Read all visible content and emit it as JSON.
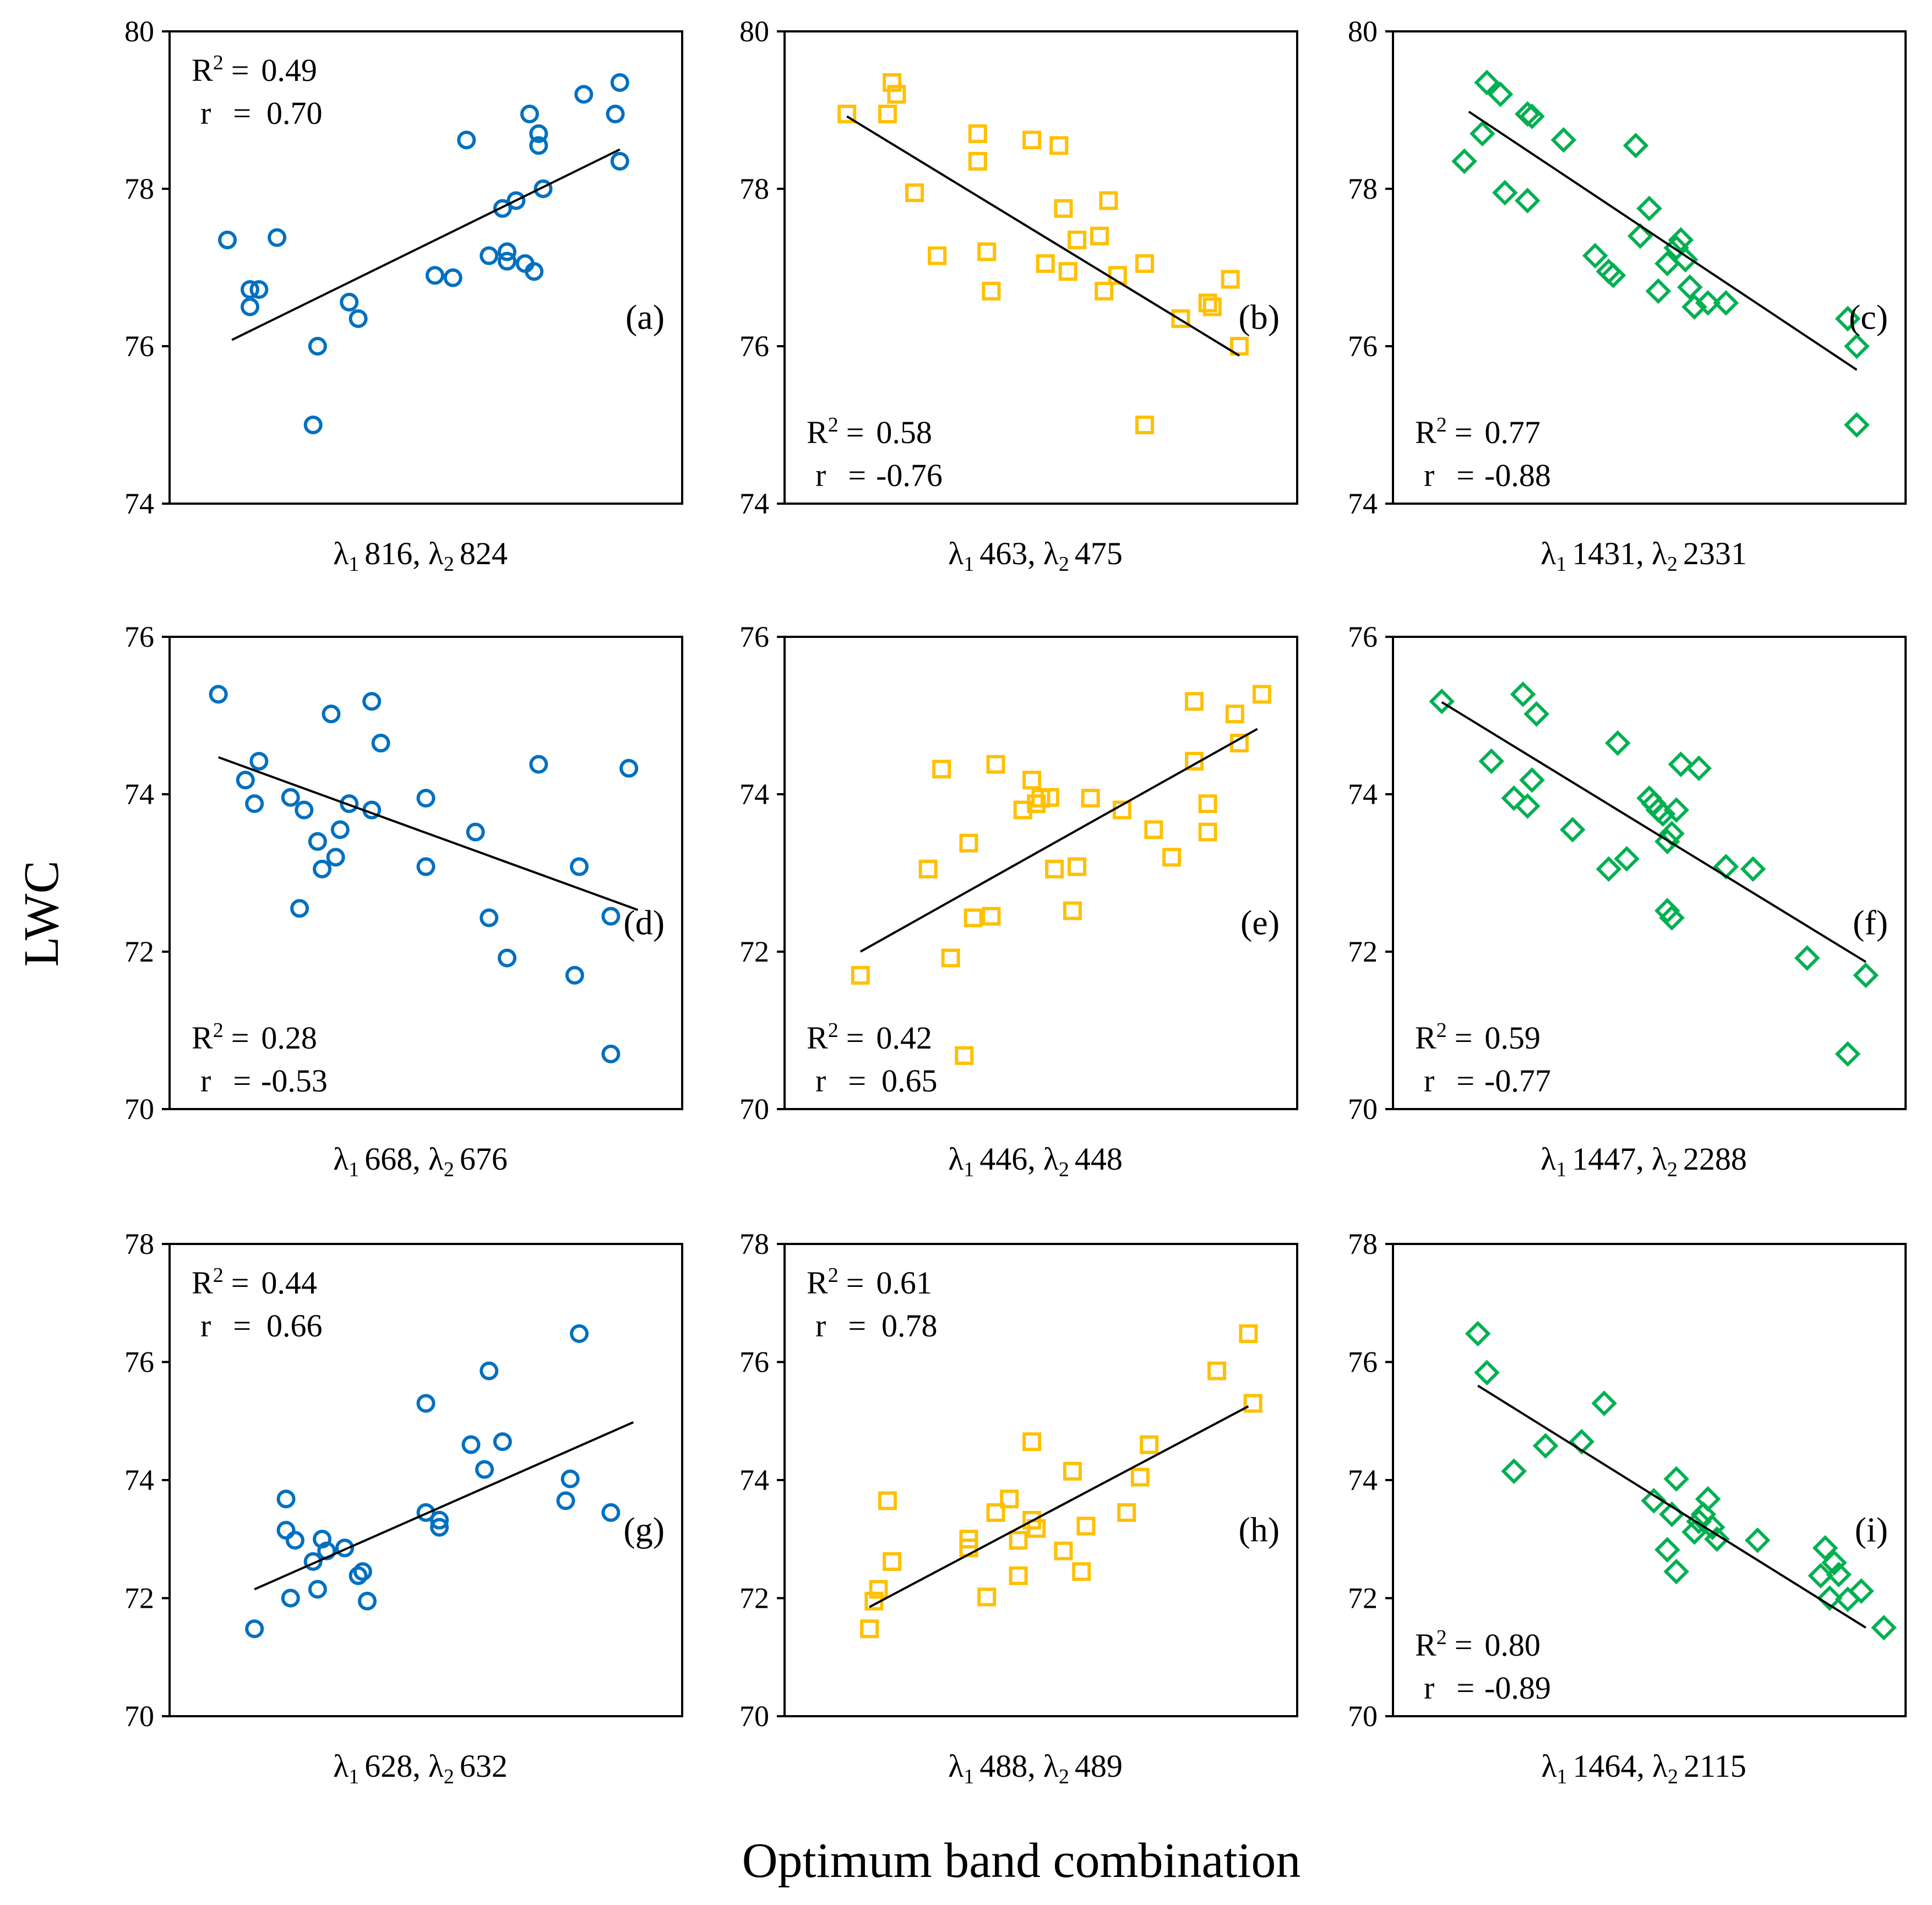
{
  "figure": {
    "ylabel": "LWC",
    "xlabel": "Optimum band combination",
    "colors": {
      "blue": "#0070c0",
      "orange": "#ffc000",
      "green": "#00b050",
      "axis": "#000000"
    }
  },
  "chart_data": [
    {
      "type": "scatter",
      "panel": "(a)",
      "marker": "circle",
      "color": "#0070c0",
      "band": {
        "l1": "816",
        "l2": "824"
      },
      "stats": {
        "r2_label": "R",
        "r2_value": "0.49",
        "r_label": "r",
        "r_value": "0.70",
        "eq": "="
      },
      "stats_position": "top-left",
      "ylim": [
        74,
        80
      ],
      "yticks": [
        "74",
        "76",
        "78",
        "80"
      ],
      "xlim": [
        0,
        1
      ],
      "trend": {
        "x": [
          0.07,
          0.93
        ],
        "y": [
          76.08,
          78.5
        ]
      },
      "points": [
        [
          0.06,
          77.35
        ],
        [
          0.11,
          76.72
        ],
        [
          0.11,
          76.5
        ],
        [
          0.13,
          76.72
        ],
        [
          0.17,
          77.38
        ],
        [
          0.26,
          76.0
        ],
        [
          0.25,
          75.0
        ],
        [
          0.33,
          76.56
        ],
        [
          0.35,
          76.35
        ],
        [
          0.52,
          76.9
        ],
        [
          0.56,
          76.87
        ],
        [
          0.59,
          78.62
        ],
        [
          0.64,
          77.15
        ],
        [
          0.67,
          77.75
        ],
        [
          0.68,
          77.2
        ],
        [
          0.68,
          77.08
        ],
        [
          0.7,
          77.85
        ],
        [
          0.72,
          77.05
        ],
        [
          0.73,
          78.95
        ],
        [
          0.74,
          76.95
        ],
        [
          0.75,
          78.55
        ],
        [
          0.75,
          78.7
        ],
        [
          0.76,
          78.0
        ],
        [
          0.85,
          79.2
        ],
        [
          0.92,
          78.95
        ],
        [
          0.93,
          79.35
        ],
        [
          0.93,
          78.35
        ]
      ]
    },
    {
      "type": "scatter",
      "panel": "(b)",
      "marker": "square",
      "color": "#ffc000",
      "band": {
        "l1": "463",
        "l2": "475"
      },
      "stats": {
        "r2_label": "R",
        "r2_value": "0.58",
        "r_label": "r",
        "r_value": "-0.76",
        "eq": "="
      },
      "stats_position": "bottom-left",
      "ylim": [
        74,
        80
      ],
      "yticks": [
        "74",
        "76",
        "78",
        "80"
      ],
      "xlim": [
        0,
        1
      ],
      "trend": {
        "x": [
          0.07,
          0.94
        ],
        "y": [
          78.92,
          75.88
        ]
      },
      "points": [
        [
          0.07,
          78.95
        ],
        [
          0.16,
          78.95
        ],
        [
          0.17,
          79.35
        ],
        [
          0.18,
          79.2
        ],
        [
          0.22,
          77.95
        ],
        [
          0.27,
          77.15
        ],
        [
          0.36,
          78.7
        ],
        [
          0.36,
          78.35
        ],
        [
          0.38,
          77.2
        ],
        [
          0.39,
          76.7
        ],
        [
          0.48,
          78.62
        ],
        [
          0.51,
          77.05
        ],
        [
          0.54,
          78.55
        ],
        [
          0.55,
          77.75
        ],
        [
          0.56,
          76.95
        ],
        [
          0.58,
          77.35
        ],
        [
          0.63,
          77.4
        ],
        [
          0.64,
          76.7
        ],
        [
          0.65,
          77.85
        ],
        [
          0.67,
          76.9
        ],
        [
          0.73,
          77.05
        ],
        [
          0.73,
          75.0
        ],
        [
          0.81,
          76.35
        ],
        [
          0.87,
          76.55
        ],
        [
          0.88,
          76.5
        ],
        [
          0.92,
          76.85
        ],
        [
          0.94,
          76.0
        ]
      ]
    },
    {
      "type": "scatter",
      "panel": "(c)",
      "marker": "diamond",
      "color": "#00b050",
      "band": {
        "l1": "1431",
        "l2": "2331"
      },
      "stats": {
        "r2_label": "R",
        "r2_value": "0.77",
        "r_label": "r",
        "r_value": "-0.88",
        "eq": "="
      },
      "stats_position": "bottom-left",
      "ylim": [
        74,
        80
      ],
      "yticks": [
        "74",
        "76",
        "78",
        "80"
      ],
      "xlim": [
        0,
        1
      ],
      "trend": {
        "x": [
          0.1,
          0.96
        ],
        "y": [
          78.98,
          75.7
        ]
      },
      "points": [
        [
          0.09,
          78.35
        ],
        [
          0.13,
          78.7
        ],
        [
          0.14,
          79.35
        ],
        [
          0.17,
          79.2
        ],
        [
          0.18,
          77.95
        ],
        [
          0.23,
          78.95
        ],
        [
          0.24,
          78.92
        ],
        [
          0.23,
          77.85
        ],
        [
          0.31,
          78.62
        ],
        [
          0.38,
          77.15
        ],
        [
          0.41,
          76.95
        ],
        [
          0.42,
          76.9
        ],
        [
          0.47,
          78.55
        ],
        [
          0.48,
          77.4
        ],
        [
          0.5,
          77.75
        ],
        [
          0.52,
          76.7
        ],
        [
          0.54,
          77.05
        ],
        [
          0.56,
          77.25
        ],
        [
          0.57,
          77.35
        ],
        [
          0.58,
          77.1
        ],
        [
          0.59,
          76.75
        ],
        [
          0.6,
          76.5
        ],
        [
          0.63,
          76.55
        ],
        [
          0.67,
          76.55
        ],
        [
          0.94,
          76.35
        ],
        [
          0.96,
          76.0
        ],
        [
          0.96,
          75.0
        ]
      ]
    },
    {
      "type": "scatter",
      "panel": "(d)",
      "marker": "circle",
      "color": "#0070c0",
      "band": {
        "l1": "668",
        "l2": "676"
      },
      "stats": {
        "r2_label": "R",
        "r2_value": "0.28",
        "r_label": "r",
        "r_value": "-0.53",
        "eq": "="
      },
      "stats_position": "bottom-left",
      "ylim": [
        70,
        76
      ],
      "yticks": [
        "70",
        "72",
        "74",
        "76"
      ],
      "xlim": [
        0,
        1
      ],
      "trend": {
        "x": [
          0.04,
          0.97
        ],
        "y": [
          74.47,
          72.53
        ]
      },
      "points": [
        [
          0.04,
          75.27
        ],
        [
          0.1,
          74.18
        ],
        [
          0.12,
          73.88
        ],
        [
          0.13,
          74.42
        ],
        [
          0.2,
          73.96
        ],
        [
          0.22,
          72.55
        ],
        [
          0.23,
          73.8
        ],
        [
          0.26,
          73.4
        ],
        [
          0.27,
          73.05
        ],
        [
          0.29,
          75.02
        ],
        [
          0.3,
          73.2
        ],
        [
          0.31,
          73.55
        ],
        [
          0.33,
          73.88
        ],
        [
          0.38,
          73.8
        ],
        [
          0.38,
          75.18
        ],
        [
          0.4,
          74.65
        ],
        [
          0.5,
          73.08
        ],
        [
          0.5,
          73.95
        ],
        [
          0.61,
          73.52
        ],
        [
          0.64,
          72.43
        ],
        [
          0.68,
          71.92
        ],
        [
          0.75,
          74.38
        ],
        [
          0.83,
          71.7
        ],
        [
          0.84,
          73.08
        ],
        [
          0.91,
          72.45
        ],
        [
          0.91,
          70.7
        ],
        [
          0.95,
          74.33
        ]
      ]
    },
    {
      "type": "scatter",
      "panel": "(e)",
      "marker": "square",
      "color": "#ffc000",
      "band": {
        "l1": "446",
        "l2": "448"
      },
      "stats": {
        "r2_label": "R",
        "r2_value": "0.42",
        "r_label": "r",
        "r_value": "0.65",
        "eq": "="
      },
      "stats_position": "bottom-left",
      "ylim": [
        70,
        76
      ],
      "yticks": [
        "70",
        "72",
        "74",
        "76"
      ],
      "xlim": [
        0,
        1
      ],
      "trend": {
        "x": [
          0.1,
          0.98
        ],
        "y": [
          72.0,
          74.83
        ]
      },
      "points": [
        [
          0.1,
          71.7
        ],
        [
          0.25,
          73.05
        ],
        [
          0.28,
          74.32
        ],
        [
          0.3,
          71.92
        ],
        [
          0.33,
          70.68
        ],
        [
          0.34,
          73.38
        ],
        [
          0.35,
          72.43
        ],
        [
          0.39,
          72.45
        ],
        [
          0.4,
          74.38
        ],
        [
          0.46,
          73.8
        ],
        [
          0.48,
          74.18
        ],
        [
          0.49,
          73.88
        ],
        [
          0.5,
          73.95
        ],
        [
          0.52,
          73.96
        ],
        [
          0.53,
          73.05
        ],
        [
          0.58,
          73.08
        ],
        [
          0.57,
          72.52
        ],
        [
          0.61,
          73.95
        ],
        [
          0.68,
          73.8
        ],
        [
          0.75,
          73.55
        ],
        [
          0.79,
          73.2
        ],
        [
          0.84,
          74.42
        ],
        [
          0.84,
          75.18
        ],
        [
          0.87,
          73.88
        ],
        [
          0.87,
          73.52
        ],
        [
          0.93,
          75.02
        ],
        [
          0.94,
          74.65
        ],
        [
          0.99,
          75.27
        ]
      ]
    },
    {
      "type": "scatter",
      "panel": "(f)",
      "marker": "diamond",
      "color": "#00b050",
      "band": {
        "l1": "1447",
        "l2": "2288"
      },
      "stats": {
        "r2_label": "R",
        "r2_value": "0.59",
        "r_label": "r",
        "r_value": "-0.77",
        "eq": "="
      },
      "stats_position": "bottom-left",
      "ylim": [
        70,
        76
      ],
      "yticks": [
        "70",
        "72",
        "74",
        "76"
      ],
      "xlim": [
        0,
        1
      ],
      "trend": {
        "x": [
          0.04,
          0.98
        ],
        "y": [
          75.17,
          71.87
        ]
      },
      "points": [
        [
          0.04,
          75.18
        ],
        [
          0.15,
          74.42
        ],
        [
          0.2,
          73.95
        ],
        [
          0.23,
          73.85
        ],
        [
          0.24,
          74.18
        ],
        [
          0.22,
          75.27
        ],
        [
          0.25,
          75.02
        ],
        [
          0.33,
          73.55
        ],
        [
          0.41,
          73.05
        ],
        [
          0.43,
          74.65
        ],
        [
          0.45,
          73.18
        ],
        [
          0.5,
          73.95
        ],
        [
          0.51,
          73.88
        ],
        [
          0.52,
          73.8
        ],
        [
          0.53,
          73.75
        ],
        [
          0.54,
          73.4
        ],
        [
          0.55,
          73.5
        ],
        [
          0.56,
          73.8
        ],
        [
          0.54,
          72.52
        ],
        [
          0.55,
          72.43
        ],
        [
          0.57,
          74.38
        ],
        [
          0.61,
          74.33
        ],
        [
          0.67,
          73.08
        ],
        [
          0.73,
          73.05
        ],
        [
          0.85,
          71.92
        ],
        [
          0.94,
          70.7
        ],
        [
          0.98,
          71.7
        ]
      ]
    },
    {
      "type": "scatter",
      "panel": "(g)",
      "marker": "circle",
      "color": "#0070c0",
      "band": {
        "l1": "628",
        "l2": "632"
      },
      "stats": {
        "r2_label": "R",
        "r2_value": "0.44",
        "r_label": "r",
        "r_value": "0.66",
        "eq": "="
      },
      "stats_position": "top-left",
      "ylim": [
        70,
        78
      ],
      "yticks": [
        "70",
        "72",
        "74",
        "76",
        "78"
      ],
      "xlim": [
        0,
        1
      ],
      "trend": {
        "x": [
          0.12,
          0.96
        ],
        "y": [
          72.15,
          74.98
        ]
      },
      "points": [
        [
          0.12,
          71.48
        ],
        [
          0.19,
          73.68
        ],
        [
          0.19,
          73.15
        ],
        [
          0.2,
          72.0
        ],
        [
          0.21,
          72.98
        ],
        [
          0.25,
          72.62
        ],
        [
          0.26,
          72.15
        ],
        [
          0.27,
          73.0
        ],
        [
          0.28,
          72.8
        ],
        [
          0.32,
          72.85
        ],
        [
          0.35,
          72.38
        ],
        [
          0.36,
          72.45
        ],
        [
          0.37,
          71.95
        ],
        [
          0.5,
          75.3
        ],
        [
          0.5,
          73.45
        ],
        [
          0.53,
          73.32
        ],
        [
          0.53,
          73.2
        ],
        [
          0.6,
          74.6
        ],
        [
          0.63,
          74.18
        ],
        [
          0.64,
          75.85
        ],
        [
          0.67,
          74.65
        ],
        [
          0.81,
          73.65
        ],
        [
          0.82,
          74.02
        ],
        [
          0.84,
          76.48
        ],
        [
          0.91,
          73.45
        ]
      ]
    },
    {
      "type": "scatter",
      "panel": "(h)",
      "marker": "square",
      "color": "#ffc000",
      "band": {
        "l1": "488",
        "l2": "489"
      },
      "stats": {
        "r2_label": "R",
        "r2_value": "0.61",
        "r_label": "r",
        "r_value": "0.78",
        "eq": "="
      },
      "stats_position": "top-left",
      "ylim": [
        70,
        78
      ],
      "yticks": [
        "70",
        "72",
        "74",
        "76",
        "78"
      ],
      "xlim": [
        0,
        1
      ],
      "trend": {
        "x": [
          0.12,
          0.96
        ],
        "y": [
          71.85,
          75.25
        ]
      },
      "points": [
        [
          0.12,
          71.48
        ],
        [
          0.13,
          71.95
        ],
        [
          0.14,
          72.15
        ],
        [
          0.16,
          73.65
        ],
        [
          0.17,
          72.62
        ],
        [
          0.34,
          73.0
        ],
        [
          0.34,
          72.85
        ],
        [
          0.38,
          72.02
        ],
        [
          0.4,
          73.45
        ],
        [
          0.43,
          73.68
        ],
        [
          0.45,
          72.98
        ],
        [
          0.45,
          72.38
        ],
        [
          0.48,
          74.65
        ],
        [
          0.48,
          73.32
        ],
        [
          0.49,
          73.18
        ],
        [
          0.55,
          72.8
        ],
        [
          0.57,
          74.15
        ],
        [
          0.59,
          72.45
        ],
        [
          0.6,
          73.22
        ],
        [
          0.69,
          73.45
        ],
        [
          0.72,
          74.05
        ],
        [
          0.74,
          74.6
        ],
        [
          0.89,
          75.85
        ],
        [
          0.96,
          76.48
        ],
        [
          0.97,
          75.3
        ]
      ]
    },
    {
      "type": "scatter",
      "panel": "(i)",
      "marker": "diamond",
      "color": "#00b050",
      "band": {
        "l1": "1464",
        "l2": "2115"
      },
      "stats": {
        "r2_label": "R",
        "r2_value": "0.80",
        "r_label": "r",
        "r_value": "-0.89",
        "eq": "="
      },
      "stats_position": "bottom-left",
      "ylim": [
        70,
        78
      ],
      "yticks": [
        "70",
        "72",
        "74",
        "76",
        "78"
      ],
      "xlim": [
        0,
        1
      ],
      "trend": {
        "x": [
          0.12,
          0.98
        ],
        "y": [
          75.6,
          71.5
        ]
      },
      "points": [
        [
          0.12,
          76.48
        ],
        [
          0.14,
          75.82
        ],
        [
          0.2,
          74.15
        ],
        [
          0.27,
          74.58
        ],
        [
          0.35,
          74.65
        ],
        [
          0.4,
          75.3
        ],
        [
          0.51,
          73.65
        ],
        [
          0.54,
          72.82
        ],
        [
          0.55,
          73.42
        ],
        [
          0.56,
          74.02
        ],
        [
          0.56,
          72.45
        ],
        [
          0.6,
          73.12
        ],
        [
          0.61,
          73.3
        ],
        [
          0.62,
          73.42
        ],
        [
          0.63,
          73.68
        ],
        [
          0.64,
          73.2
        ],
        [
          0.65,
          73.0
        ],
        [
          0.74,
          72.98
        ],
        [
          0.88,
          72.38
        ],
        [
          0.89,
          72.85
        ],
        [
          0.9,
          72.0
        ],
        [
          0.91,
          72.6
        ],
        [
          0.92,
          72.4
        ],
        [
          0.94,
          71.98
        ],
        [
          0.97,
          72.12
        ],
        [
          1.02,
          71.5
        ]
      ]
    }
  ]
}
